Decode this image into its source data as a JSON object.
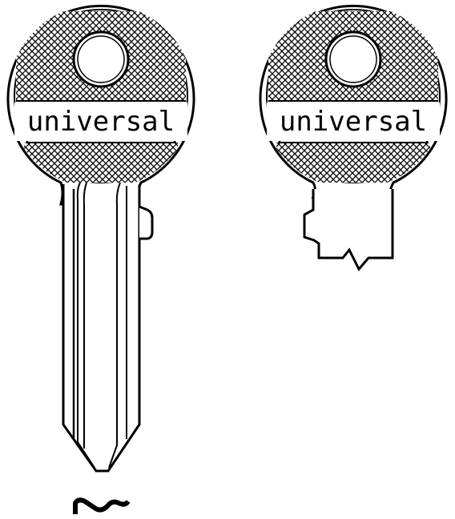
{
  "brand_label": "universal",
  "keys": [
    {
      "id": "key-side-view",
      "brand": "universal"
    },
    {
      "id": "key-front-view",
      "brand": "universal"
    }
  ],
  "colors": {
    "line": "#000000",
    "background": "#ffffff"
  },
  "icons": [
    "profile-keyway-icon"
  ]
}
